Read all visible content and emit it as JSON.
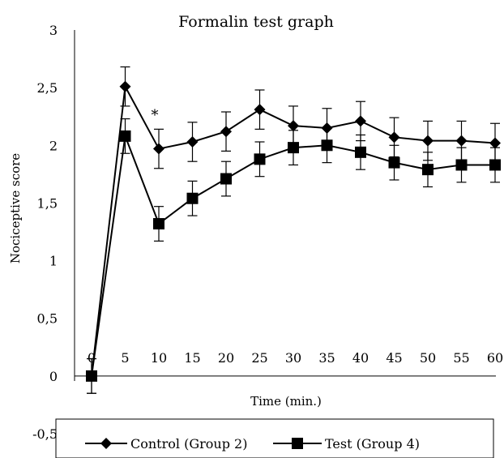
{
  "chart_data": {
    "type": "line",
    "title": "Formalin test graph",
    "xlabel": "Time (min.)",
    "ylabel": "Nociceptive score",
    "x": [
      0,
      5,
      10,
      15,
      20,
      25,
      30,
      35,
      40,
      45,
      50,
      55,
      60
    ],
    "x_tick_labels": [
      "0",
      "5",
      "10",
      "15",
      "20",
      "25",
      "30",
      "35",
      "40",
      "45",
      "50",
      "55",
      "60"
    ],
    "ylim": [
      -0.5,
      3
    ],
    "y_ticks": [
      -0.5,
      0,
      0.5,
      1,
      1.5,
      2,
      2.5,
      3
    ],
    "y_tick_labels": [
      "-0,5",
      "0",
      "0,5",
      "1",
      "1,5",
      "2",
      "2,5",
      "3"
    ],
    "grid": false,
    "legend_position": "bottom",
    "series": [
      {
        "name": "Control (Group 2)",
        "marker": "diamond",
        "color": "#000000",
        "values": [
          0,
          2.51,
          1.97,
          2.03,
          2.12,
          2.31,
          2.17,
          2.15,
          2.21,
          2.07,
          2.04,
          2.04,
          2.02
        ],
        "error": [
          0.15,
          0.17,
          0.17,
          0.17,
          0.17,
          0.17,
          0.17,
          0.17,
          0.17,
          0.17,
          0.17,
          0.17,
          0.17
        ]
      },
      {
        "name": "Test (Group 4)",
        "marker": "square",
        "color": "#000000",
        "values": [
          0,
          2.08,
          1.32,
          1.54,
          1.71,
          1.88,
          1.98,
          2.0,
          1.94,
          1.85,
          1.79,
          1.83,
          1.83
        ],
        "error": [
          0.15,
          0.15,
          0.15,
          0.15,
          0.15,
          0.15,
          0.15,
          0.15,
          0.15,
          0.15,
          0.15,
          0.15,
          0.15
        ]
      }
    ],
    "annotations": [
      {
        "text": "*",
        "x": 10,
        "y": 2.22
      }
    ]
  }
}
